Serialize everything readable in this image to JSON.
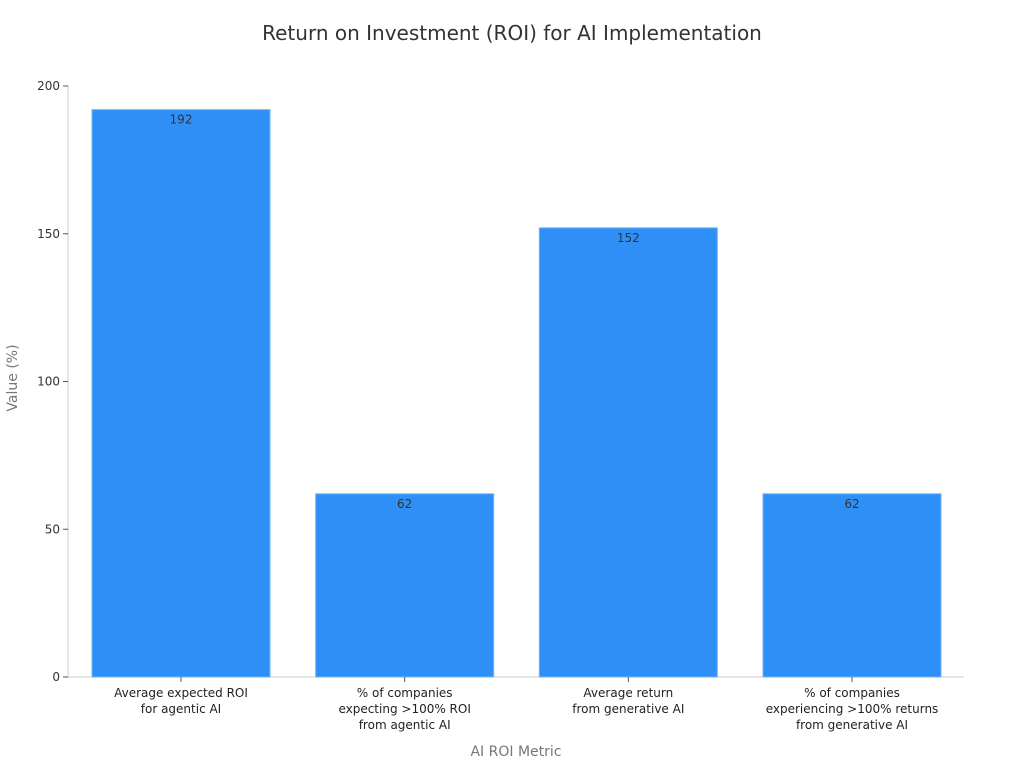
{
  "chart_data": {
    "type": "bar",
    "title": "Return on Investment (ROI) for AI Implementation",
    "xlabel": "AI ROI Metric",
    "ylabel": "Value (%)",
    "ylim": [
      0,
      200
    ],
    "yticks": [
      0,
      50,
      100,
      150,
      200
    ],
    "grid": false,
    "categories": [
      [
        "Average expected ROI",
        "for agentic AI"
      ],
      [
        "% of companies",
        "expecting >100% ROI",
        "from agentic AI"
      ],
      [
        "Average return",
        "from generative AI"
      ],
      [
        "% of companies",
        "experiencing >100% returns",
        "from generative AI"
      ]
    ],
    "values": [
      192,
      62,
      152,
      62
    ],
    "data_labels": [
      "192",
      "62",
      "152",
      "62"
    ],
    "bar_color": "#2e90f7",
    "bar_edge_color": "#6fb3fa"
  }
}
